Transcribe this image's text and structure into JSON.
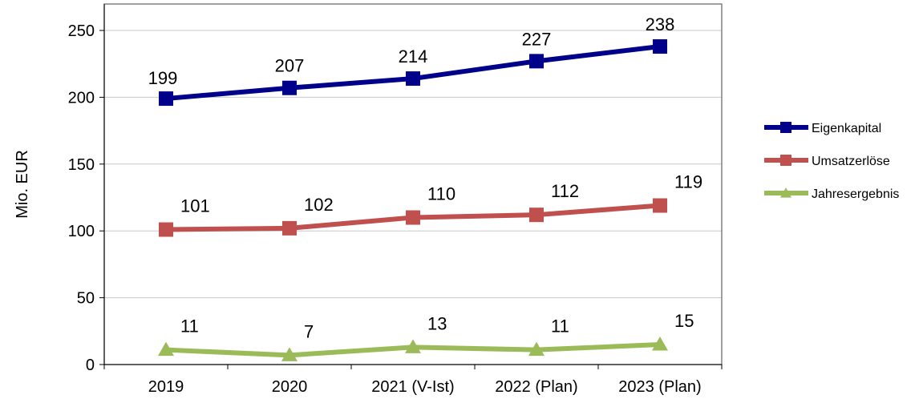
{
  "chart_data": {
    "type": "line",
    "title": "",
    "xlabel": "",
    "ylabel": "Mio. EUR",
    "ylim": [
      0,
      250
    ],
    "yticks": [
      0,
      50,
      100,
      150,
      200,
      250
    ],
    "grid": true,
    "legend_position": "right",
    "categories": [
      "2019",
      "2020",
      "2021 (V-Ist)",
      "2022 (Plan)",
      "2023 (Plan)"
    ],
    "series": [
      {
        "name": "Eigenkapital",
        "values": [
          199,
          207,
          214,
          227,
          238
        ],
        "labels": [
          "199",
          "207",
          "214",
          "227",
          "238"
        ],
        "color": "#00008b",
        "marker": "square",
        "label_position": "above"
      },
      {
        "name": "Umsatzerlöse",
        "values": [
          101,
          102,
          110,
          112,
          119
        ],
        "labels": [
          "101",
          "102",
          "110",
          "112",
          "119"
        ],
        "color": "#c0504d",
        "marker": "square",
        "label_position": "above-right"
      },
      {
        "name": "Jahresergebnis",
        "values": [
          11,
          7,
          13,
          11,
          15
        ],
        "labels": [
          "11",
          "7",
          "13",
          "11",
          "15"
        ],
        "color": "#9bbb59",
        "marker": "triangle",
        "label_position": "above-right"
      }
    ]
  }
}
